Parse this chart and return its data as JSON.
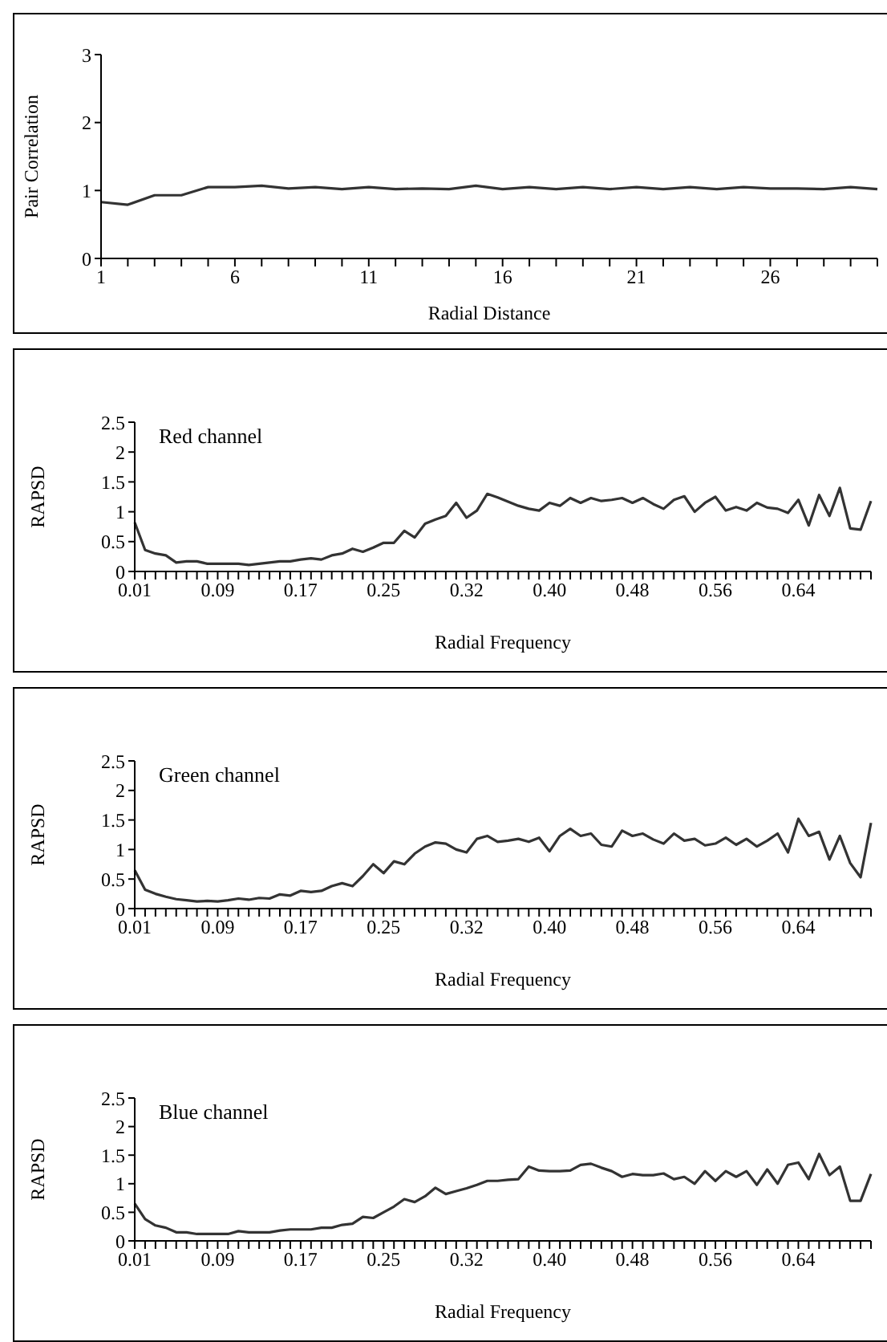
{
  "chart_data": [
    {
      "type": "line",
      "color": "#333333",
      "marker": "none",
      "xlabel": "Radial Distance",
      "ylabel": "Pair Correlation",
      "ylim": [
        0,
        3
      ],
      "yticks": [
        0,
        1,
        2,
        3
      ],
      "categories": [
        "1",
        null,
        null,
        null,
        null,
        "6",
        null,
        null,
        null,
        null,
        "11",
        null,
        null,
        null,
        null,
        "16",
        null,
        null,
        null,
        null,
        "21",
        null,
        null,
        null,
        null,
        "26",
        null,
        null,
        null,
        null
      ],
      "values": [
        0.83,
        0.79,
        0.93,
        0.93,
        1.05,
        1.05,
        1.07,
        1.03,
        1.05,
        1.02,
        1.05,
        1.02,
        1.03,
        1.02,
        1.07,
        1.02,
        1.05,
        1.02,
        1.05,
        1.02,
        1.05,
        1.02,
        1.05,
        1.02,
        1.05,
        1.03,
        1.03,
        1.02,
        1.05,
        1.02
      ]
    },
    {
      "type": "line",
      "color": "#333333",
      "marker": "none",
      "xlabel": "Radial Frequency",
      "ylabel": "RAPSD",
      "ylim": [
        0,
        2.5
      ],
      "yticks": [
        0,
        0.5,
        1,
        1.5,
        2,
        2.5
      ],
      "annotations": [
        "Red channel"
      ],
      "categories": [
        "0.01",
        null,
        null,
        null,
        null,
        null,
        null,
        null,
        "0.09",
        null,
        null,
        null,
        null,
        null,
        null,
        null,
        "0.17",
        null,
        null,
        null,
        null,
        null,
        null,
        null,
        "0.25",
        null,
        null,
        null,
        null,
        null,
        null,
        null,
        "0.32",
        null,
        null,
        null,
        null,
        null,
        null,
        null,
        "0.40",
        null,
        null,
        null,
        null,
        null,
        null,
        null,
        "0.48",
        null,
        null,
        null,
        null,
        null,
        null,
        null,
        "0.56",
        null,
        null,
        null,
        null,
        null,
        null,
        null,
        "0.64",
        null,
        null,
        null,
        null,
        null,
        null,
        null
      ],
      "values": [
        0.82,
        0.36,
        0.3,
        0.27,
        0.15,
        0.17,
        0.17,
        0.13,
        0.13,
        0.13,
        0.13,
        0.11,
        0.13,
        0.15,
        0.17,
        0.17,
        0.2,
        0.22,
        0.2,
        0.27,
        0.3,
        0.38,
        0.33,
        0.4,
        0.48,
        0.48,
        0.68,
        0.57,
        0.8,
        0.87,
        0.93,
        1.15,
        0.9,
        1.02,
        1.3,
        1.24,
        1.17,
        1.1,
        1.05,
        1.02,
        1.15,
        1.1,
        1.23,
        1.15,
        1.23,
        1.18,
        1.2,
        1.23,
        1.15,
        1.23,
        1.13,
        1.05,
        1.2,
        1.26,
        1.0,
        1.15,
        1.25,
        1.02,
        1.08,
        1.02,
        1.15,
        1.07,
        1.05,
        0.98,
        1.2,
        0.77,
        1.28,
        0.93,
        1.4,
        0.72,
        0.7,
        1.18
      ]
    },
    {
      "type": "line",
      "color": "#333333",
      "marker": "none",
      "xlabel": "Radial Frequency",
      "ylabel": "RAPSD",
      "ylim": [
        0,
        2.5
      ],
      "yticks": [
        0,
        0.5,
        1,
        1.5,
        2,
        2.5
      ],
      "annotations": [
        "Green channel"
      ],
      "categories": [
        "0.01",
        null,
        null,
        null,
        null,
        null,
        null,
        null,
        "0.09",
        null,
        null,
        null,
        null,
        null,
        null,
        null,
        "0.17",
        null,
        null,
        null,
        null,
        null,
        null,
        null,
        "0.25",
        null,
        null,
        null,
        null,
        null,
        null,
        null,
        "0.32",
        null,
        null,
        null,
        null,
        null,
        null,
        null,
        "0.40",
        null,
        null,
        null,
        null,
        null,
        null,
        null,
        "0.48",
        null,
        null,
        null,
        null,
        null,
        null,
        null,
        "0.56",
        null,
        null,
        null,
        null,
        null,
        null,
        null,
        "0.64",
        null,
        null,
        null,
        null,
        null,
        null,
        null
      ],
      "values": [
        0.65,
        0.32,
        0.25,
        0.2,
        0.16,
        0.14,
        0.12,
        0.13,
        0.12,
        0.14,
        0.17,
        0.15,
        0.18,
        0.17,
        0.24,
        0.22,
        0.3,
        0.28,
        0.3,
        0.38,
        0.43,
        0.38,
        0.55,
        0.75,
        0.6,
        0.8,
        0.75,
        0.93,
        1.05,
        1.12,
        1.1,
        1.0,
        0.95,
        1.18,
        1.23,
        1.13,
        1.15,
        1.18,
        1.13,
        1.2,
        0.97,
        1.23,
        1.35,
        1.23,
        1.27,
        1.08,
        1.05,
        1.32,
        1.23,
        1.27,
        1.17,
        1.1,
        1.27,
        1.15,
        1.18,
        1.07,
        1.1,
        1.2,
        1.08,
        1.18,
        1.05,
        1.15,
        1.27,
        0.95,
        1.52,
        1.23,
        1.3,
        0.83,
        1.23,
        0.77,
        0.53,
        1.45
      ]
    },
    {
      "type": "line",
      "color": "#333333",
      "marker": "none",
      "xlabel": "Radial Frequency",
      "ylabel": "RAPSD",
      "ylim": [
        0,
        2.5
      ],
      "yticks": [
        0,
        0.5,
        1,
        1.5,
        2,
        2.5
      ],
      "annotations": [
        "Blue channel"
      ],
      "categories": [
        "0.01",
        null,
        null,
        null,
        null,
        null,
        null,
        null,
        "0.09",
        null,
        null,
        null,
        null,
        null,
        null,
        null,
        "0.17",
        null,
        null,
        null,
        null,
        null,
        null,
        null,
        "0.25",
        null,
        null,
        null,
        null,
        null,
        null,
        null,
        "0.32",
        null,
        null,
        null,
        null,
        null,
        null,
        null,
        "0.40",
        null,
        null,
        null,
        null,
        null,
        null,
        null,
        "0.48",
        null,
        null,
        null,
        null,
        null,
        null,
        null,
        "0.56",
        null,
        null,
        null,
        null,
        null,
        null,
        null,
        "0.64",
        null,
        null,
        null,
        null,
        null,
        null,
        null
      ],
      "values": [
        0.65,
        0.38,
        0.27,
        0.23,
        0.15,
        0.15,
        0.12,
        0.12,
        0.12,
        0.12,
        0.17,
        0.15,
        0.15,
        0.15,
        0.18,
        0.2,
        0.2,
        0.2,
        0.23,
        0.23,
        0.28,
        0.3,
        0.42,
        0.4,
        0.5,
        0.6,
        0.73,
        0.68,
        0.78,
        0.93,
        0.82,
        0.87,
        0.92,
        0.98,
        1.05,
        1.05,
        1.07,
        1.08,
        1.3,
        1.23,
        1.22,
        1.22,
        1.23,
        1.33,
        1.35,
        1.28,
        1.22,
        1.12,
        1.17,
        1.15,
        1.15,
        1.18,
        1.08,
        1.12,
        1.0,
        1.22,
        1.05,
        1.22,
        1.12,
        1.22,
        0.98,
        1.25,
        1.0,
        1.33,
        1.37,
        1.08,
        1.52,
        1.15,
        1.3,
        0.7,
        0.7,
        1.17
      ]
    }
  ]
}
